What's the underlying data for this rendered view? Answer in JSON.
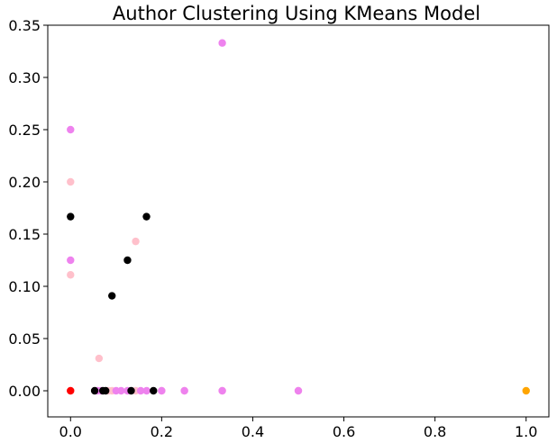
{
  "chart_data": {
    "type": "scatter",
    "title": "Author Clustering Using KMeans Model",
    "xlabel": "",
    "ylabel": "",
    "xlim": [
      -0.05,
      1.05
    ],
    "ylim": [
      -0.025,
      0.35
    ],
    "xticks": [
      0.0,
      0.2,
      0.4,
      0.6,
      0.8,
      1.0
    ],
    "xtick_labels": [
      "0.0",
      "0.2",
      "0.4",
      "0.6",
      "0.8",
      "1.0"
    ],
    "yticks": [
      0.0,
      0.05,
      0.1,
      0.15,
      0.2,
      0.25,
      0.3,
      0.35
    ],
    "ytick_labels": [
      "0.00",
      "0.05",
      "0.10",
      "0.15",
      "0.20",
      "0.25",
      "0.30",
      "0.35"
    ],
    "grid": false,
    "legend": "none",
    "series": [
      {
        "color": "#ffc0cb",
        "points": [
          [
            0.0,
            0.2
          ],
          [
            0.0,
            0.111
          ],
          [
            0.143,
            0.143
          ],
          [
            0.0625,
            0.031
          ],
          [
            0.0,
            0.0
          ],
          [
            0.083,
            0.0
          ],
          [
            0.091,
            0.0
          ],
          [
            0.143,
            0.0
          ],
          [
            0.2,
            0.0
          ],
          [
            0.25,
            0.0
          ],
          [
            0.333,
            0.0
          ],
          [
            0.5,
            0.0
          ]
        ]
      },
      {
        "color": "#ee82ee",
        "points": [
          [
            0.333,
            0.333
          ],
          [
            0.0,
            0.25
          ],
          [
            0.0,
            0.125
          ],
          [
            0.059,
            0.0
          ],
          [
            0.067,
            0.0
          ],
          [
            0.1,
            0.0
          ],
          [
            0.111,
            0.0
          ],
          [
            0.125,
            0.0
          ],
          [
            0.154,
            0.0
          ],
          [
            0.167,
            0.0
          ],
          [
            0.2,
            0.0
          ],
          [
            0.25,
            0.0
          ],
          [
            0.333,
            0.0
          ],
          [
            0.5,
            0.0
          ]
        ]
      },
      {
        "color": "#000000",
        "points": [
          [
            0.0,
            0.1667
          ],
          [
            0.1667,
            0.1667
          ],
          [
            0.125,
            0.125
          ],
          [
            0.0909,
            0.0909
          ],
          [
            0.053,
            0.0
          ],
          [
            0.071,
            0.0
          ],
          [
            0.077,
            0.0
          ],
          [
            0.133,
            0.0
          ],
          [
            0.182,
            0.0
          ]
        ]
      },
      {
        "color": "#ff0000",
        "points": [
          [
            0.0,
            0.0
          ]
        ]
      },
      {
        "color": "#ffa500",
        "points": [
          [
            1.0,
            0.0
          ]
        ]
      }
    ]
  }
}
